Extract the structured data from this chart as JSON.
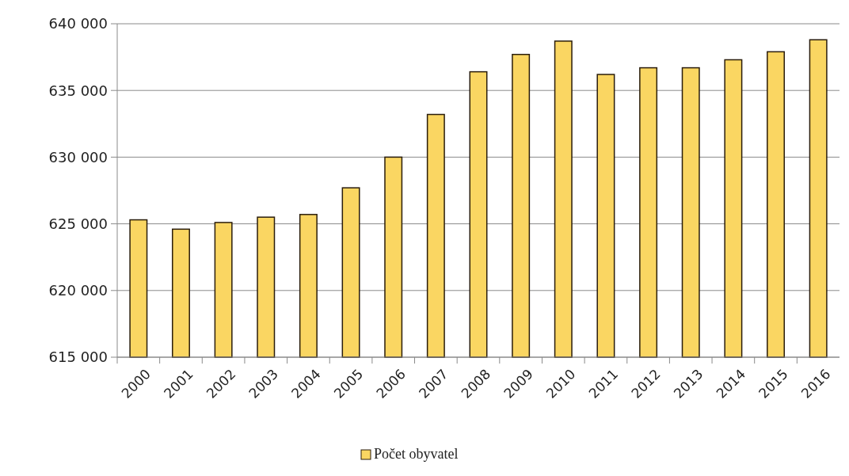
{
  "chart_data": {
    "type": "bar",
    "categories": [
      "2000",
      "2001",
      "2002",
      "2003",
      "2004",
      "2005",
      "2006",
      "2007",
      "2008",
      "2009",
      "2010",
      "2011",
      "2012",
      "2013",
      "2014",
      "2015",
      "2016"
    ],
    "series": [
      {
        "name": "Počet obyvatel",
        "color": "#fad662",
        "values": [
          625300,
          624600,
          625100,
          625500,
          625700,
          627700,
          630000,
          633200,
          636400,
          637700,
          638700,
          636200,
          636700,
          636700,
          637300,
          637900,
          638800
        ]
      }
    ],
    "ylim": [
      615000,
      640000
    ],
    "yticks": [
      {
        "value": 615000,
        "label": "615 000"
      },
      {
        "value": 620000,
        "label": "620 000"
      },
      {
        "value": 625000,
        "label": "625 000"
      },
      {
        "value": 630000,
        "label": "630 000"
      },
      {
        "value": 635000,
        "label": "635 000"
      },
      {
        "value": 640000,
        "label": "640 000"
      }
    ],
    "grid": "y",
    "legend": "bottom"
  }
}
